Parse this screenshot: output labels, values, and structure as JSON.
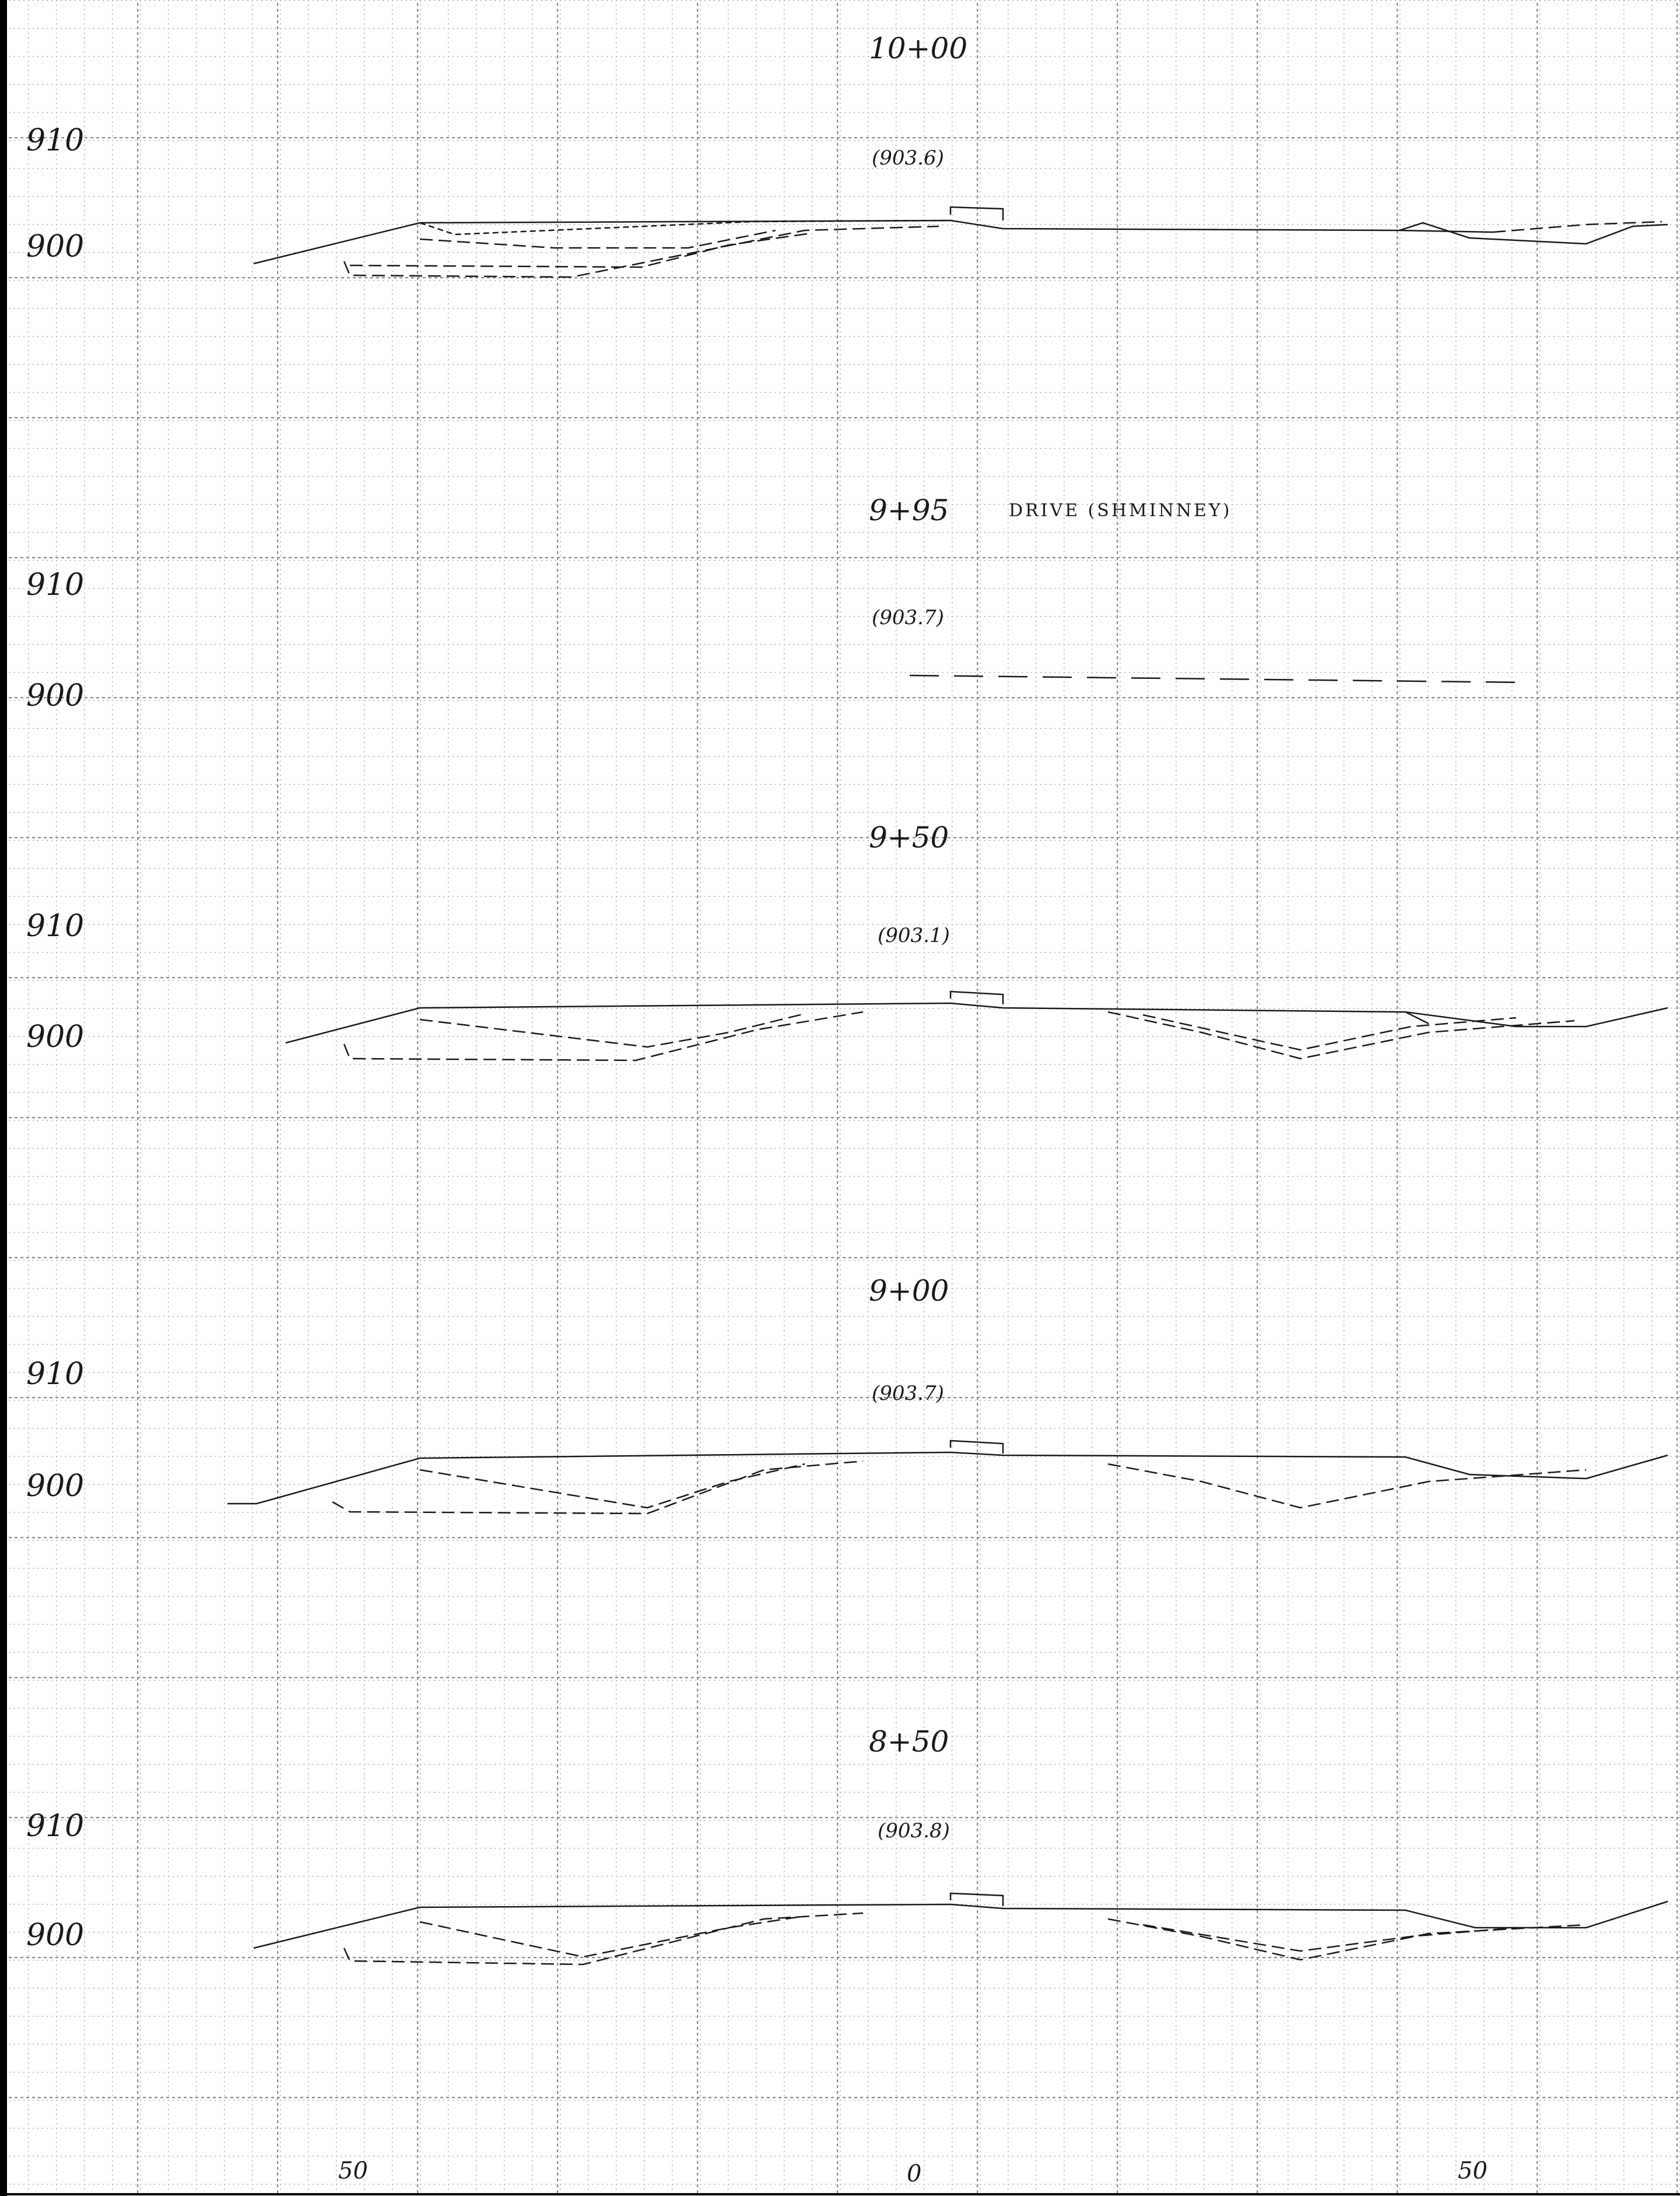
{
  "sheet": {
    "sections": [
      {
        "station": "10+00",
        "centerline_elev": "(903.6)",
        "elev_labels": [
          "910",
          "900"
        ],
        "note": ""
      },
      {
        "station": "9+95",
        "centerline_elev": "(903.7)",
        "elev_labels": [
          "910",
          "900"
        ],
        "note": "DRIVE (SHMINNEY)"
      },
      {
        "station": "9+50",
        "centerline_elev": "(903.1)",
        "elev_labels": [
          "910",
          "900"
        ],
        "note": ""
      },
      {
        "station": "9+00",
        "centerline_elev": "(903.7)",
        "elev_labels": [
          "910",
          "900"
        ],
        "note": ""
      },
      {
        "station": "8+50",
        "centerline_elev": "(903.8)",
        "elev_labels": [
          "910",
          "900"
        ],
        "note": ""
      }
    ],
    "offset_labels": [
      "50",
      "0",
      "50"
    ]
  },
  "colors": {
    "ink": "#1a1a1a",
    "grid_major": "#8a8a8a",
    "grid_minor": "#a8a8a8",
    "border": "#000000"
  }
}
